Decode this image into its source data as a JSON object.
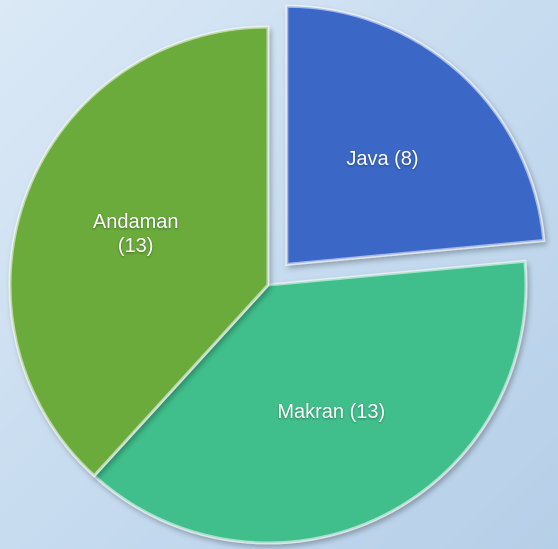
{
  "chart_data": {
    "type": "pie",
    "categories": [
      "Java",
      "Makran",
      "Andaman"
    ],
    "values": [
      8,
      13,
      13
    ],
    "value_labels": [
      "Java (8)",
      "Makran (13)",
      "Andaman (13)"
    ],
    "colors": [
      "#3b67c6",
      "#3fbf8c",
      "#6bab3b"
    ],
    "exploded": [
      true,
      false,
      false
    ]
  }
}
